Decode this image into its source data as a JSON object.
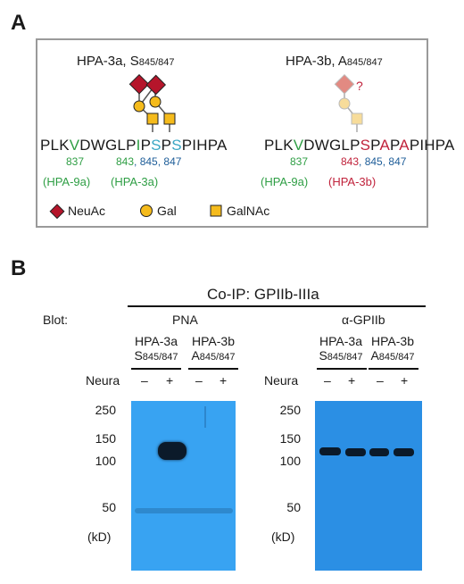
{
  "panel_a": {
    "label": "A",
    "left_header": {
      "name": "HPA-3a, S",
      "sub": "845/847"
    },
    "right_header": {
      "name": "HPA-3b, A",
      "sub": "845/847"
    },
    "question_mark": "?",
    "seq_left": [
      {
        "t": "PLK",
        "c": ""
      },
      {
        "t": "V",
        "c": "g"
      },
      {
        "t": "DWGLP",
        "c": ""
      },
      {
        "t": "I",
        "c": "g"
      },
      {
        "t": "P",
        "c": ""
      },
      {
        "t": "S",
        "c": "b"
      },
      {
        "t": "P",
        "c": ""
      },
      {
        "t": "S",
        "c": "b"
      },
      {
        "t": "PIHPA",
        "c": ""
      }
    ],
    "seq_right": [
      {
        "t": "PLK",
        "c": ""
      },
      {
        "t": "V",
        "c": "g"
      },
      {
        "t": "DWGLP",
        "c": ""
      },
      {
        "t": "S",
        "c": "r"
      },
      {
        "t": "P",
        "c": ""
      },
      {
        "t": "A",
        "c": "r"
      },
      {
        "t": "P",
        "c": ""
      },
      {
        "t": "A",
        "c": "r"
      },
      {
        "t": "PIHPA",
        "c": ""
      }
    ],
    "left_numbers": {
      "n837": "837",
      "n843": "843",
      "rest": ", 845, 847"
    },
    "right_numbers": {
      "n837": "837",
      "n843": "843",
      "rest": ", 845, 847"
    },
    "variants_left": [
      "(HPA-9a)",
      "(HPA-3a)"
    ],
    "variants_right": [
      "(HPA-9a)",
      "(HPA-3b)"
    ],
    "legend": [
      "NeuAc",
      "Gal",
      "GalNAc"
    ],
    "colors": {
      "neuac": "#b5152b",
      "gal": "#f5bb1c",
      "galnac": "#f5bb1c",
      "green": "#2e9e44",
      "blue": "#3aa7c4",
      "red": "#c0223b"
    }
  },
  "panel_b": {
    "label": "B",
    "coip_title": "Co-IP: GPIIb-IIIa",
    "blot_label": "Blot:",
    "pna": "PNA",
    "anti_gpiib": "α-GPIIb",
    "allele_a": {
      "name": "HPA-3a",
      "pos": "S",
      "sub": "845/847"
    },
    "allele_b": {
      "name": "HPA-3b",
      "pos": "A",
      "sub": "845/847"
    },
    "neura": "Neura",
    "signs": [
      "–",
      "+",
      "–",
      "+"
    ],
    "mw_markers": [
      "250",
      "150",
      "100",
      "50"
    ],
    "unit": "(kD)",
    "gel_colors": {
      "left": "#38a3f2",
      "right": "#2b8fe4",
      "band": "#0b1a2a"
    }
  }
}
